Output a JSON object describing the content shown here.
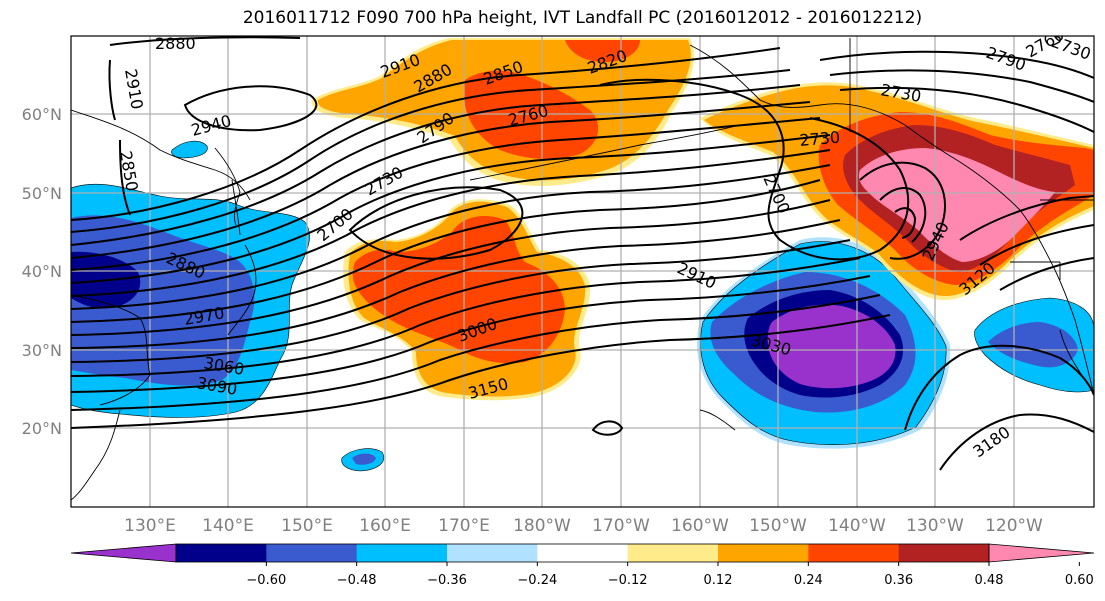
{
  "title": "2016011712 F090 700 hPa height, IVT Landfall PC (2016012012 - 2016012212)",
  "map": {
    "lat_labels": [
      "60°N",
      "50°N",
      "40°N",
      "30°N",
      "20°N"
    ],
    "lon_labels": [
      "130°E",
      "140°E",
      "150°E",
      "160°E",
      "170°E",
      "180°W",
      "170°W",
      "160°W",
      "150°W",
      "140°W",
      "130°W",
      "120°W"
    ],
    "height_labels": [
      "2880",
      "2910",
      "2850",
      "2940",
      "2910",
      "2880",
      "2850",
      "2820",
      "2790",
      "2760",
      "2730",
      "2700",
      "2760",
      "2790",
      "2730",
      "2730",
      "2700",
      "2910",
      "2940",
      "3120",
      "2880",
      "2970",
      "3060",
      "3090",
      "3000",
      "3150",
      "3030",
      "3180",
      "2730"
    ]
  },
  "colorbar": {
    "tick_labels": [
      "−0.60",
      "−0.48",
      "−0.36",
      "−0.24",
      "−0.12",
      "0.12",
      "0.24",
      "0.36",
      "0.48",
      "0.60"
    ],
    "colors": [
      "#9932cc",
      "#00008b",
      "#3a5bd0",
      "#00bfff",
      "#b0e2ff",
      "#ffffff",
      "#ffeb8a",
      "#ffa500",
      "#ff4500",
      "#b22222",
      "#ff88b0"
    ]
  }
}
